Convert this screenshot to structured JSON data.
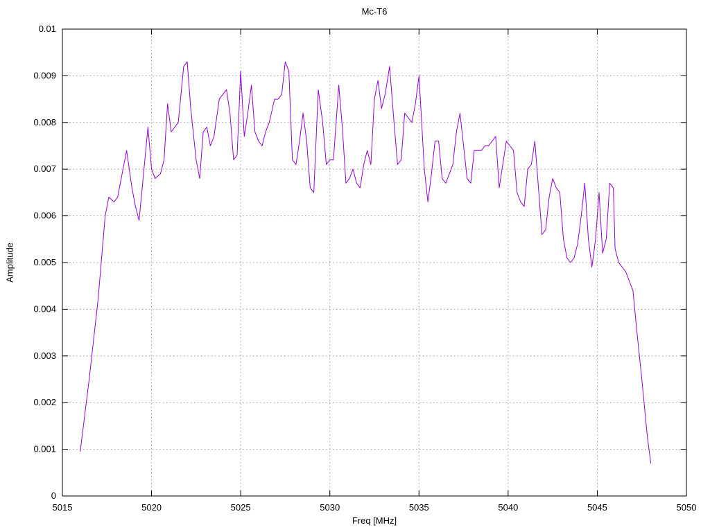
{
  "title": "Mc-T6",
  "colors": {
    "line": "#9400d3",
    "grid": "#9a9a9a",
    "border": "#000000",
    "background": "#ffffff"
  },
  "chart_data": {
    "type": "line",
    "title": "Mc-T6",
    "xlabel": "Freq [MHz]",
    "ylabel": "Amplitude",
    "xlim": [
      5015,
      5050
    ],
    "ylim": [
      0,
      0.01
    ],
    "xticks": [
      5015,
      5020,
      5025,
      5030,
      5035,
      5040,
      5045,
      5050
    ],
    "xtick_labels": [
      "5015",
      "5020",
      "5025",
      "5030",
      "5035",
      "5040",
      "5045",
      "5050"
    ],
    "yticks": [
      0,
      0.001,
      0.002,
      0.003,
      0.004,
      0.005,
      0.006,
      0.007,
      0.008,
      0.009,
      0.01
    ],
    "ytick_labels": [
      "0",
      "0.001",
      "0.002",
      "0.003",
      "0.004",
      "0.005",
      "0.006",
      "0.007",
      "0.008",
      "0.009",
      "0.01"
    ],
    "grid": true,
    "legend": "none",
    "series": [
      {
        "name": "Mc-T6",
        "x": [
          5016.0,
          5016.5,
          5017.0,
          5017.4,
          5017.6,
          5017.9,
          5018.1,
          5018.4,
          5018.6,
          5018.9,
          5019.1,
          5019.3,
          5019.6,
          5019.8,
          5020.0,
          5020.2,
          5020.5,
          5020.7,
          5020.9,
          5021.1,
          5021.3,
          5021.5,
          5021.8,
          5022.0,
          5022.2,
          5022.5,
          5022.7,
          5022.9,
          5023.1,
          5023.3,
          5023.5,
          5023.8,
          5024.0,
          5024.2,
          5024.4,
          5024.6,
          5024.8,
          5025.0,
          5025.2,
          5025.4,
          5025.6,
          5025.8,
          5026.0,
          5026.2,
          5026.4,
          5026.6,
          5026.9,
          5027.1,
          5027.3,
          5027.5,
          5027.7,
          5027.9,
          5028.1,
          5028.3,
          5028.5,
          5028.7,
          5028.9,
          5029.1,
          5029.35,
          5029.6,
          5029.8,
          5030.0,
          5030.2,
          5030.5,
          5030.7,
          5030.9,
          5031.1,
          5031.3,
          5031.5,
          5031.7,
          5031.9,
          5032.1,
          5032.3,
          5032.5,
          5032.7,
          5032.9,
          5033.1,
          5033.35,
          5033.6,
          5033.8,
          5034.0,
          5034.2,
          5034.4,
          5034.6,
          5034.8,
          5035.0,
          5035.3,
          5035.5,
          5035.7,
          5035.9,
          5036.1,
          5036.3,
          5036.5,
          5036.7,
          5036.9,
          5037.1,
          5037.3,
          5037.5,
          5037.7,
          5037.9,
          5038.1,
          5038.3,
          5038.5,
          5038.7,
          5038.9,
          5039.1,
          5039.3,
          5039.5,
          5039.7,
          5039.9,
          5040.1,
          5040.3,
          5040.5,
          5040.7,
          5040.9,
          5041.1,
          5041.3,
          5041.5,
          5041.7,
          5041.9,
          5042.1,
          5042.3,
          5042.5,
          5042.7,
          5042.9,
          5043.1,
          5043.3,
          5043.5,
          5043.7,
          5043.9,
          5044.1,
          5044.3,
          5044.5,
          5044.7,
          5044.9,
          5045.1,
          5045.3,
          5045.5,
          5045.7,
          5045.9,
          5046.0,
          5046.2,
          5046.4,
          5046.6,
          5046.8,
          5047.0,
          5047.2,
          5047.5,
          5047.8,
          5048.0
        ],
        "y": [
          0.00095,
          0.0025,
          0.0042,
          0.006,
          0.0064,
          0.0063,
          0.0064,
          0.007,
          0.0074,
          0.0066,
          0.0062,
          0.0059,
          0.0071,
          0.0079,
          0.007,
          0.0068,
          0.0069,
          0.0072,
          0.0084,
          0.0078,
          0.0079,
          0.008,
          0.0092,
          0.0093,
          0.0083,
          0.0072,
          0.0068,
          0.0078,
          0.0079,
          0.0075,
          0.0077,
          0.0085,
          0.0086,
          0.0087,
          0.0082,
          0.0072,
          0.0073,
          0.0091,
          0.0077,
          0.0082,
          0.0088,
          0.0078,
          0.0076,
          0.0075,
          0.0078,
          0.008,
          0.0085,
          0.0085,
          0.0086,
          0.0093,
          0.0091,
          0.0072,
          0.0071,
          0.0076,
          0.0082,
          0.0076,
          0.0066,
          0.0065,
          0.0087,
          0.008,
          0.0071,
          0.0072,
          0.0072,
          0.0088,
          0.0079,
          0.0067,
          0.0068,
          0.007,
          0.0067,
          0.0066,
          0.0071,
          0.0074,
          0.0071,
          0.0085,
          0.0089,
          0.0083,
          0.0086,
          0.0092,
          0.008,
          0.0071,
          0.0072,
          0.0082,
          0.0081,
          0.008,
          0.0084,
          0.009,
          0.007,
          0.0063,
          0.0069,
          0.0076,
          0.0076,
          0.0068,
          0.0067,
          0.0069,
          0.0071,
          0.0078,
          0.0082,
          0.0075,
          0.0068,
          0.0067,
          0.0074,
          0.0074,
          0.0074,
          0.0075,
          0.0075,
          0.0076,
          0.0077,
          0.0066,
          0.0071,
          0.0076,
          0.0075,
          0.0074,
          0.0065,
          0.0063,
          0.0062,
          0.007,
          0.0071,
          0.0076,
          0.0066,
          0.0056,
          0.0057,
          0.0064,
          0.0068,
          0.0066,
          0.0065,
          0.0055,
          0.0051,
          0.005,
          0.0051,
          0.0054,
          0.006,
          0.0067,
          0.0055,
          0.0049,
          0.0055,
          0.0065,
          0.0052,
          0.0055,
          0.0067,
          0.0066,
          0.0053,
          0.005,
          0.0049,
          0.0048,
          0.0046,
          0.0044,
          0.0036,
          0.0025,
          0.0013,
          0.0007
        ]
      }
    ]
  }
}
